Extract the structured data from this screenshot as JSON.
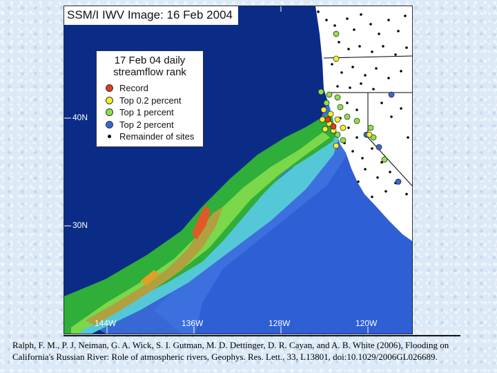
{
  "map": {
    "title": "SSM/I IWV Image: 16 Feb 2004",
    "legend": {
      "title_line1": "17 Feb 04 daily",
      "title_line2": "streamflow rank",
      "items": [
        {
          "label": "Record",
          "color": "#e63a1e"
        },
        {
          "label": "Top 0.2 percent",
          "color": "#f2ee2a"
        },
        {
          "label": "Top 1 percent",
          "color": "#8fe048"
        },
        {
          "label": "Top 2 percent",
          "color": "#3b67c9"
        },
        {
          "label": "Remainder of sites",
          "color": "#000000"
        }
      ]
    },
    "latitude_labels": [
      "40N",
      "30N"
    ],
    "longitude_labels": [
      "144W",
      "136W",
      "128W",
      "120W"
    ],
    "colors": {
      "ocean_dry": "#0b2c86",
      "ocean_mid": "#3f73e0",
      "coastal_cyan": "#55c8d8",
      "moist_low": "#2fae3a",
      "moist_mid": "#7ad84a",
      "moist_high": "#b0a040",
      "moist_peak": "#e05a28",
      "land": "#ffffff"
    }
  },
  "caption": {
    "text": "Ralph, F. M., P. J. Neiman, G. A. Wick, S. I. Gutman, M. D. Dettinger, D. R. Cayan, and A. B. White (2006), Flooding on California's Russian River: Role of atmospheric rivers, Geophys. Res. Lett., 33, L13801, doi:10.1029/2006GL026689."
  }
}
